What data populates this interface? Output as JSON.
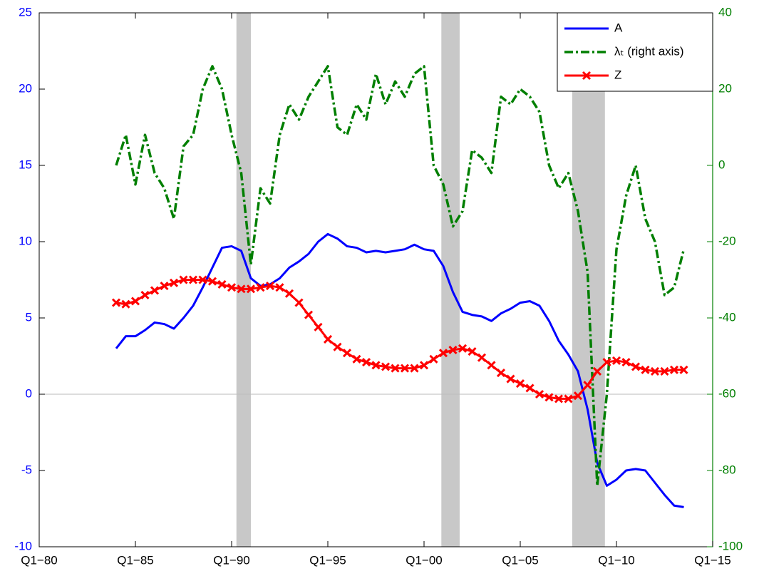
{
  "chart_data": {
    "type": "line",
    "x": [
      1984,
      1984.5,
      1985,
      1985.5,
      1986,
      1986.5,
      1987,
      1987.5,
      1988,
      1988.5,
      1989,
      1989.5,
      1990,
      1990.5,
      1991,
      1991.5,
      1992,
      1992.5,
      1993,
      1993.5,
      1994,
      1994.5,
      1995,
      1995.5,
      1996,
      1996.5,
      1997,
      1997.5,
      1998,
      1998.5,
      1999,
      1999.5,
      2000,
      2000.5,
      2001,
      2001.5,
      2002,
      2002.5,
      2003,
      2003.5,
      2004,
      2004.5,
      2005,
      2005.5,
      2006,
      2006.5,
      2007,
      2007.5,
      2008,
      2008.5,
      2009,
      2009.5,
      2010,
      2010.5,
      2011,
      2011.5,
      2012,
      2012.5,
      2013,
      2013.5
    ],
    "xlim": [
      1980,
      2015
    ],
    "xticks": [
      {
        "value": 1980,
        "label": "Q1−80"
      },
      {
        "value": 1985,
        "label": "Q1−85"
      },
      {
        "value": 1990,
        "label": "Q1−90"
      },
      {
        "value": 1995,
        "label": "Q1−95"
      },
      {
        "value": 2000,
        "label": "Q1−00"
      },
      {
        "value": 2005,
        "label": "Q1−05"
      },
      {
        "value": 2010,
        "label": "Q1−10"
      },
      {
        "value": 2015,
        "label": "Q1−15"
      }
    ],
    "ylim": [
      -10,
      25
    ],
    "yticks": [
      -10,
      -5,
      0,
      5,
      10,
      15,
      20,
      25
    ],
    "y2lim": [
      -100,
      40
    ],
    "y2ticks": [
      -100,
      -80,
      -60,
      -40,
      -20,
      0,
      20,
      40
    ],
    "y_color": "#0000ff",
    "y2_color": "#007f00",
    "shaded_periods": [
      [
        1990.25,
        1991.0
      ],
      [
        2000.9,
        2001.85
      ],
      [
        2007.7,
        2009.4
      ]
    ],
    "legend": "upper right",
    "series": [
      {
        "name": "A",
        "color": "#0000ff",
        "values": [
          3.0,
          3.8,
          3.8,
          4.2,
          4.7,
          4.6,
          4.3,
          5.0,
          5.8,
          7.0,
          8.3,
          9.6,
          9.7,
          9.4,
          7.6,
          7.1,
          7.2,
          7.6,
          8.3,
          8.7,
          9.2,
          10.0,
          10.5,
          10.2,
          9.7,
          9.6,
          9.3,
          9.4,
          9.3,
          9.4,
          9.5,
          9.8,
          9.5,
          9.4,
          8.4,
          6.7,
          5.4,
          5.2,
          5.1,
          4.8,
          5.3,
          5.6,
          6.0,
          6.1,
          5.8,
          4.8,
          3.5,
          2.6,
          1.5,
          -1.0,
          -4.5,
          -6.0,
          -5.6,
          -5.0,
          -4.9,
          -5.0,
          -5.8,
          -6.6,
          -7.3,
          -7.4
        ]
      },
      {
        "name": "λₜ (right axis)",
        "color": "#007f00",
        "axis": "y2",
        "values": [
          0,
          8,
          -5,
          8,
          -2,
          -6,
          -14,
          5,
          8,
          20,
          26,
          20,
          8,
          -2,
          -26,
          -6,
          -10,
          8,
          16,
          12,
          18,
          22,
          26,
          10,
          8,
          16,
          12,
          24,
          16,
          22,
          18,
          24,
          26,
          0,
          -5,
          -16,
          -12,
          4,
          2,
          -2,
          18,
          16,
          20,
          18,
          14,
          0,
          -6,
          -2,
          -12,
          -28,
          -84,
          -60,
          -22,
          -8,
          0,
          -14,
          -20,
          -34,
          -32,
          -22
        ]
      },
      {
        "name": "Z",
        "color": "#ff0000",
        "values": [
          6.0,
          5.9,
          6.1,
          6.5,
          6.8,
          7.1,
          7.3,
          7.5,
          7.5,
          7.5,
          7.4,
          7.2,
          7.0,
          6.9,
          6.9,
          7.0,
          7.1,
          7.0,
          6.6,
          6.0,
          5.2,
          4.4,
          3.6,
          3.1,
          2.7,
          2.3,
          2.1,
          1.9,
          1.8,
          1.7,
          1.7,
          1.7,
          1.9,
          2.3,
          2.7,
          2.9,
          3.0,
          2.8,
          2.4,
          1.9,
          1.4,
          1.0,
          0.7,
          0.4,
          0.0,
          -0.2,
          -0.3,
          -0.3,
          -0.1,
          0.6,
          1.5,
          2.1,
          2.2,
          2.1,
          1.8,
          1.6,
          1.5,
          1.5,
          1.6,
          1.6
        ]
      }
    ]
  }
}
